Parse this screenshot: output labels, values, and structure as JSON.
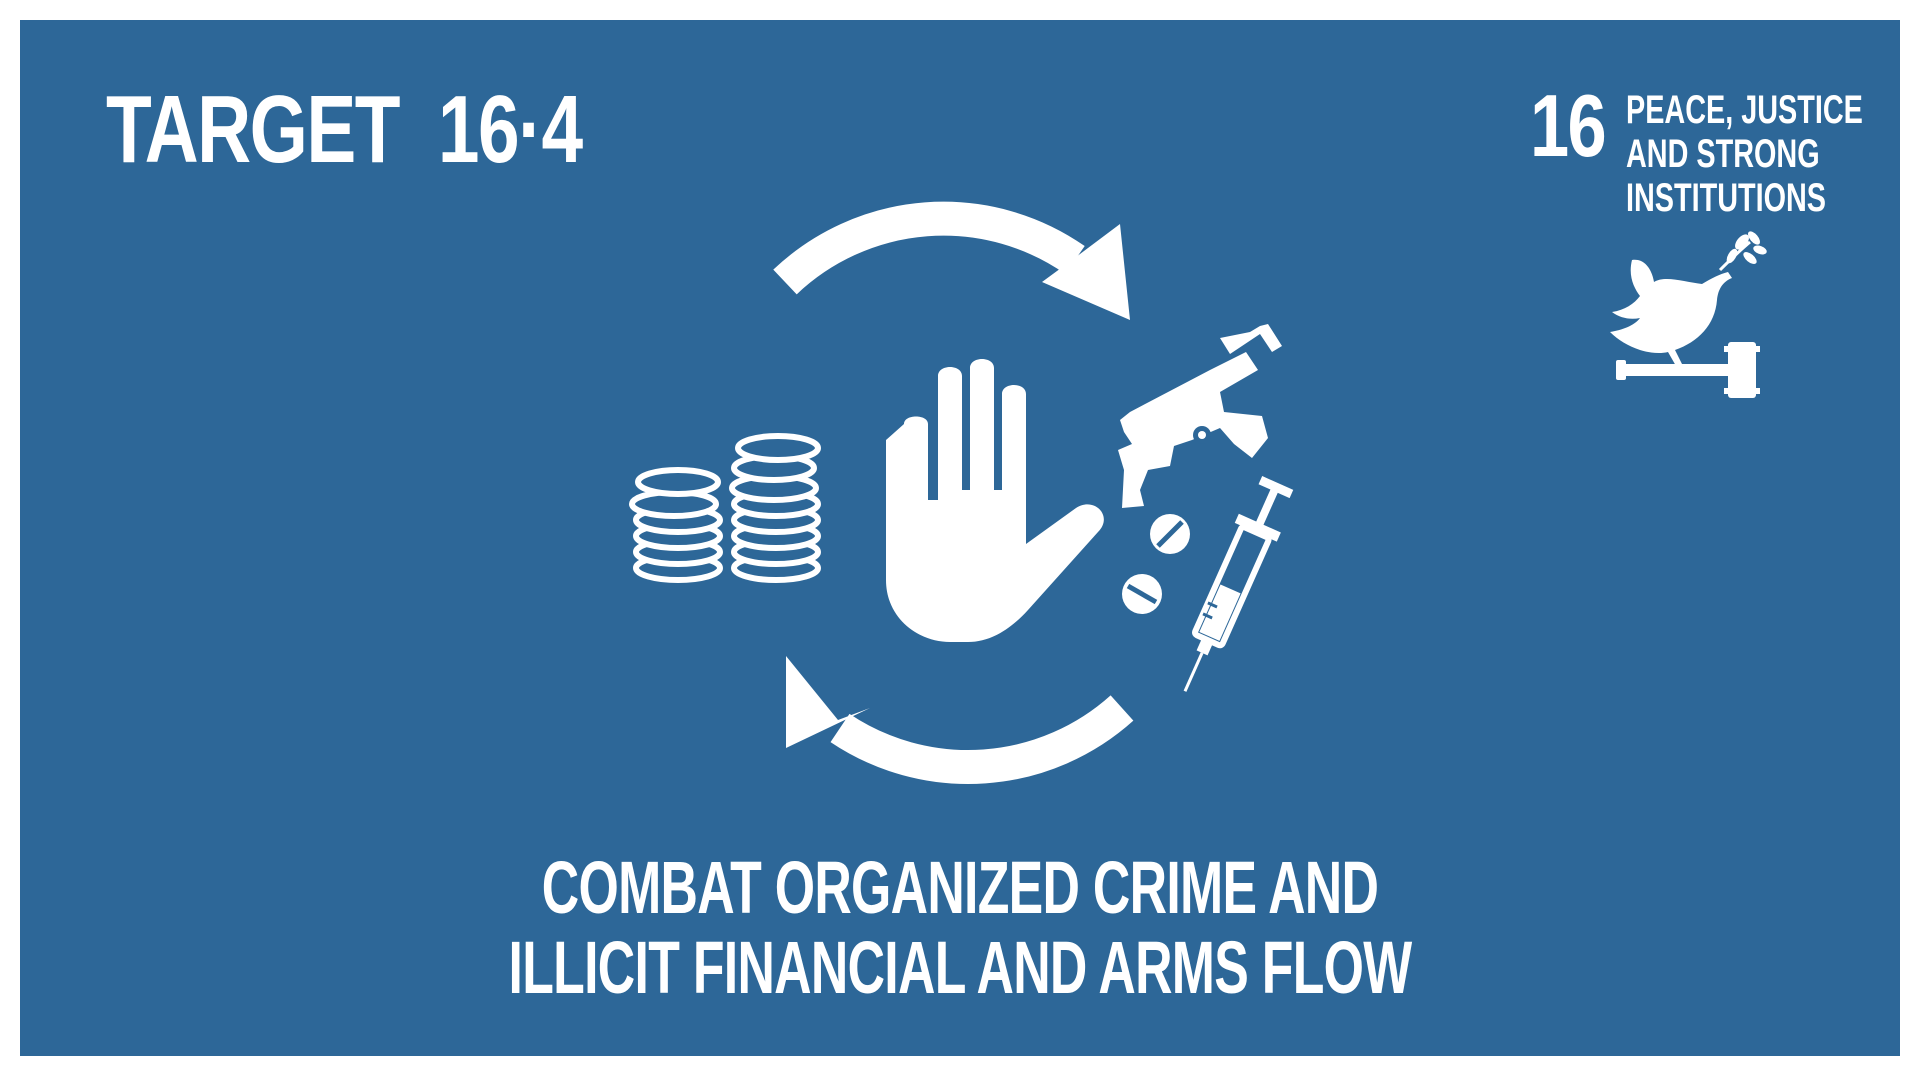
{
  "target": {
    "label": "TARGET",
    "number": "16·4"
  },
  "goal": {
    "number": "16",
    "name_lines": [
      "PEACE, JUSTICE",
      "AND STRONG",
      "INSTITUTIONS"
    ]
  },
  "caption": {
    "lines": [
      "COMBAT ORGANIZED CRIME AND",
      "ILLICIT FINANCIAL AND ARMS FLOW"
    ]
  },
  "colors": {
    "background": "#2d6798",
    "foreground": "#ffffff",
    "border": "#ffffff"
  },
  "icons": [
    "cycle-arrows-icon",
    "stop-hand-icon",
    "coin-stacks-icon",
    "rifle-icon",
    "pills-icon",
    "syringe-icon",
    "dove-icon",
    "gavel-icon"
  ]
}
